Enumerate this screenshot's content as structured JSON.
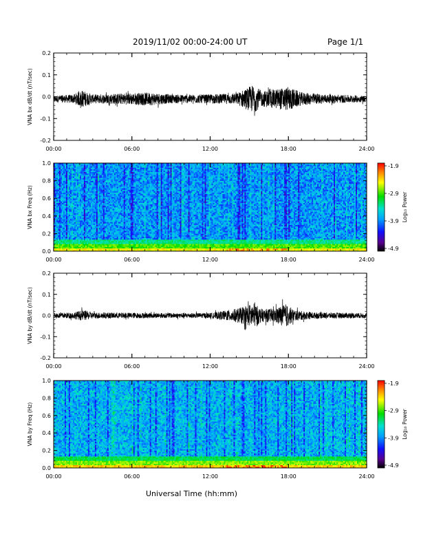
{
  "header": {
    "date_range": "2019/11/02  00:00-24:00 UT",
    "page": "Page 1/1"
  },
  "x_axis": {
    "label": "Universal Time (hh:mm)",
    "ticks": [
      "00:00",
      "06:00",
      "12:00",
      "18:00",
      "24:00"
    ]
  },
  "colorbar": {
    "label": "Log₁₀ Power",
    "ticks": [
      "-1.9",
      "-2.9",
      "-3.9",
      "-4.9"
    ]
  },
  "chart_data": [
    {
      "type": "line",
      "ylabel": "VNA bx dB/dt (nT/sec)",
      "x_range_hours": [
        0,
        24
      ],
      "ylim": [
        -0.2,
        0.2
      ],
      "y_ticks": [
        "0.2",
        "0.1",
        "0.0",
        "-0.1",
        "-0.2"
      ],
      "baseline": -0.01,
      "amplitude_envelope": [
        {
          "t": 0.0,
          "amp": 0.015
        },
        {
          "t": 1.5,
          "amp": 0.02
        },
        {
          "t": 2.2,
          "amp": 0.04
        },
        {
          "t": 3.0,
          "amp": 0.02
        },
        {
          "t": 5.0,
          "amp": 0.025
        },
        {
          "t": 7.5,
          "amp": 0.03
        },
        {
          "t": 9.0,
          "amp": 0.02
        },
        {
          "t": 11.5,
          "amp": 0.02
        },
        {
          "t": 14.0,
          "amp": 0.025
        },
        {
          "t": 14.8,
          "amp": 0.05
        },
        {
          "t": 15.3,
          "amp": 0.065
        },
        {
          "t": 16.0,
          "amp": 0.035
        },
        {
          "t": 17.0,
          "amp": 0.045
        },
        {
          "t": 18.0,
          "amp": 0.055
        },
        {
          "t": 19.0,
          "amp": 0.03
        },
        {
          "t": 21.0,
          "amp": 0.02
        },
        {
          "t": 24.0,
          "amp": 0.015
        }
      ]
    },
    {
      "type": "heatmap",
      "ylabel": "VNA bx Freq (Hz)",
      "x_range_hours": [
        0,
        24
      ],
      "ylim": [
        0.0,
        1.0
      ],
      "y_ticks": [
        "1.0",
        "0.8",
        "0.6",
        "0.4",
        "0.2",
        "0.0"
      ],
      "z_range_log10": [
        -4.9,
        -1.9
      ],
      "colormap": "rainbow"
    },
    {
      "type": "line",
      "ylabel": "VNA by dB/dt (nT/sec)",
      "x_range_hours": [
        0,
        24
      ],
      "ylim": [
        -0.2,
        0.2
      ],
      "y_ticks": [
        "0.2",
        "0.1",
        "0.0",
        "-0.1",
        "-0.2"
      ],
      "baseline": 0.0,
      "amplitude_envelope": [
        {
          "t": 0.0,
          "amp": 0.012
        },
        {
          "t": 1.5,
          "amp": 0.015
        },
        {
          "t": 2.2,
          "amp": 0.025
        },
        {
          "t": 3.0,
          "amp": 0.015
        },
        {
          "t": 8.0,
          "amp": 0.012
        },
        {
          "t": 12.0,
          "amp": 0.012
        },
        {
          "t": 13.8,
          "amp": 0.03
        },
        {
          "t": 14.8,
          "amp": 0.045
        },
        {
          "t": 15.3,
          "amp": 0.06
        },
        {
          "t": 16.0,
          "amp": 0.03
        },
        {
          "t": 17.0,
          "amp": 0.035
        },
        {
          "t": 17.8,
          "amp": 0.055
        },
        {
          "t": 18.5,
          "amp": 0.025
        },
        {
          "t": 20.0,
          "amp": 0.015
        },
        {
          "t": 24.0,
          "amp": 0.012
        }
      ]
    },
    {
      "type": "heatmap",
      "ylabel": "VNA by Freq (Hz)",
      "x_range_hours": [
        0,
        24
      ],
      "ylim": [
        0.0,
        1.0
      ],
      "y_ticks": [
        "1.0",
        "0.8",
        "0.6",
        "0.4",
        "0.2",
        "0.0"
      ],
      "z_range_log10": [
        -4.9,
        -1.9
      ],
      "colormap": "rainbow"
    }
  ]
}
